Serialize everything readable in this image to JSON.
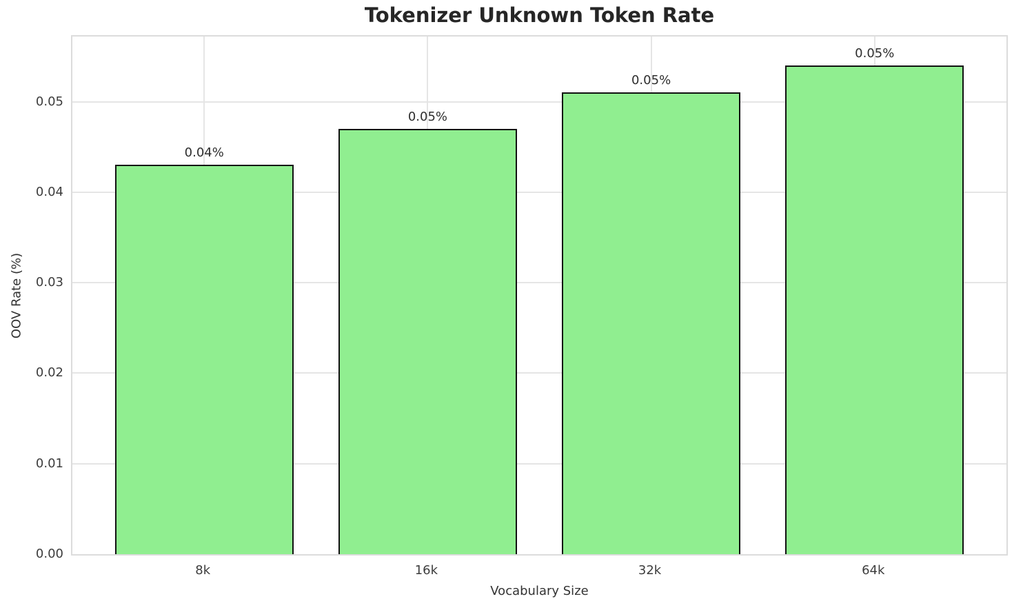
{
  "chart_data": {
    "type": "bar",
    "title": "Tokenizer Unknown Token Rate",
    "xlabel": "Vocabulary Size",
    "ylabel": "OOV Rate (%)",
    "categories": [
      "8k",
      "16k",
      "32k",
      "64k"
    ],
    "values": [
      0.043,
      0.047,
      0.051,
      0.054
    ],
    "bar_labels": [
      "0.04%",
      "0.05%",
      "0.05%",
      "0.05%"
    ],
    "yticks": [
      "0.00",
      "0.01",
      "0.02",
      "0.03",
      "0.04",
      "0.05"
    ],
    "ylim": [
      0,
      0.0572
    ],
    "grid": true,
    "legend": false,
    "bar_color": "#90EE90",
    "bar_edge_color": "#111111",
    "grid_color": "#e5e5e5",
    "spine_color": "#dcdcdc",
    "text_color": "#262626"
  }
}
